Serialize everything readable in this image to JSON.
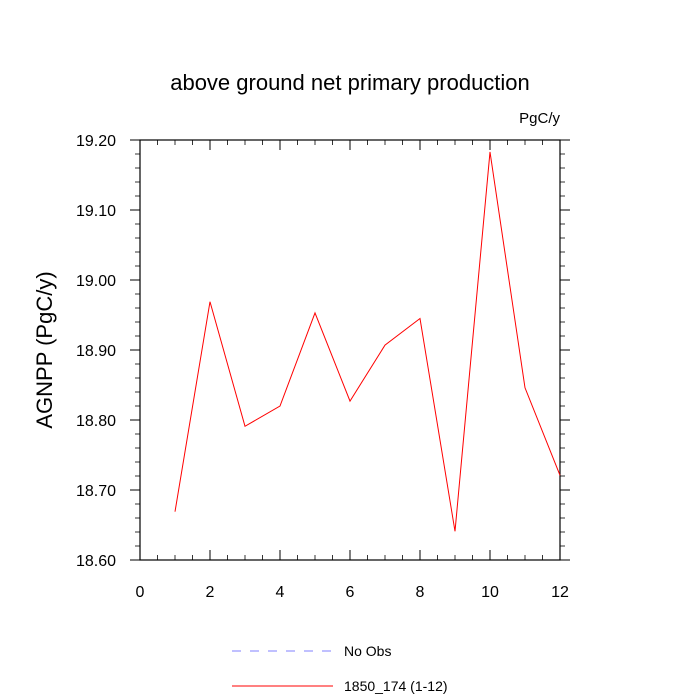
{
  "chart_data": {
    "type": "line",
    "title": "above ground net primary production",
    "units_label": "PgC/y",
    "ylabel": "AGNPP  (PgC/y)",
    "xlabel": "",
    "xlim": [
      0,
      12
    ],
    "ylim": [
      18.6,
      19.2
    ],
    "x_ticks": [
      0,
      2,
      4,
      6,
      8,
      10,
      12
    ],
    "y_ticks": [
      "18.60",
      "18.70",
      "18.80",
      "18.90",
      "19.00",
      "19.10",
      "19.20"
    ],
    "grid": false,
    "legend_position": "bottom",
    "series": [
      {
        "name": "1850_174 (1-12)",
        "color": "#ff0000",
        "dash": "solid",
        "x": [
          1,
          2,
          3,
          4,
          5,
          6,
          7,
          8,
          9,
          10,
          11,
          12
        ],
        "y": [
          18.669,
          18.969,
          18.791,
          18.82,
          18.953,
          18.827,
          18.907,
          18.945,
          18.641,
          19.183,
          18.846,
          18.721
        ]
      }
    ],
    "legend": [
      {
        "label": "No Obs",
        "color": "#8080ff",
        "dash": "dashed"
      },
      {
        "label": "1850_174 (1-12)",
        "color": "#ff0000",
        "dash": "solid"
      }
    ]
  }
}
